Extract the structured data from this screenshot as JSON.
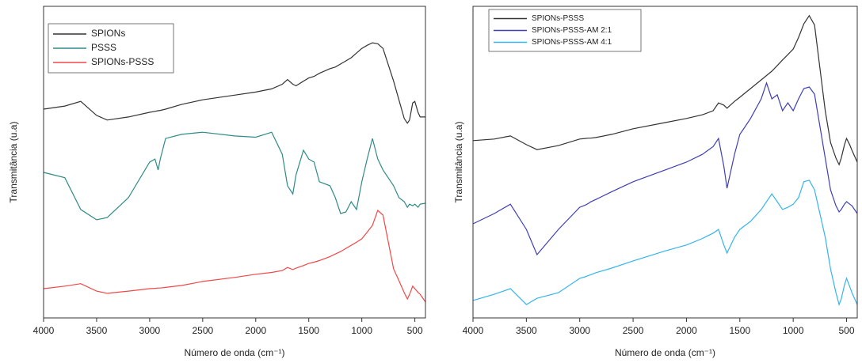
{
  "chart_data": [
    {
      "type": "line",
      "xlabel": "Número de onda (cm⁻¹)",
      "ylabel": "Transmitância (u.a)",
      "xlim": [
        4000,
        400
      ],
      "ylim": [
        0,
        100
      ],
      "xticks": [
        4000,
        3500,
        3000,
        2500,
        2000,
        1500,
        1000,
        500
      ],
      "legend": "upper left",
      "x": [
        4000,
        3800,
        3650,
        3500,
        3400,
        3200,
        3000,
        2950,
        2920,
        2900,
        2850,
        2700,
        2500,
        2200,
        2000,
        1850,
        1750,
        1700,
        1650,
        1620,
        1550,
        1500,
        1450,
        1400,
        1300,
        1250,
        1200,
        1150,
        1100,
        1050,
        1000,
        950,
        900,
        850,
        800,
        700,
        650,
        600,
        570,
        550,
        520,
        500,
        470,
        450,
        400
      ],
      "series": [
        {
          "name": "SPIONs",
          "color": "#333333",
          "values": [
            67,
            68,
            69.5,
            65,
            63.5,
            64.5,
            66,
            66.3,
            66.5,
            66.6,
            67,
            68.5,
            70,
            71.5,
            72.5,
            73.5,
            75,
            76.5,
            75,
            74.5,
            76,
            77,
            77.5,
            78.5,
            80,
            80.5,
            81.5,
            82.5,
            83.5,
            85,
            86.5,
            87.5,
            88.3,
            88,
            86.5,
            76,
            70,
            64,
            62.5,
            63.5,
            69,
            69.5,
            66,
            64.5,
            64.5
          ]
        },
        {
          "name": "PSSS",
          "color": "#2e8b87",
          "values": [
            46.7,
            45,
            34.8,
            31.5,
            32.2,
            38.6,
            50,
            51,
            47.5,
            51,
            57.6,
            58.9,
            59.6,
            58.4,
            58,
            59.6,
            52.5,
            42.4,
            39.8,
            46,
            53.8,
            51,
            50,
            43.7,
            42.4,
            38.6,
            33.5,
            34,
            37.3,
            34.8,
            43.7,
            51,
            57.6,
            51,
            47.5,
            42.4,
            38.6,
            37.3,
            35.5,
            36.5,
            36,
            36.5,
            35.5,
            36.5,
            36.8
          ]
        },
        {
          "name": "SPIONs-PSSS",
          "color": "#f04848",
          "values": [
            9.4,
            10.2,
            11,
            8.6,
            7.9,
            8.6,
            9.4,
            9.5,
            9.6,
            9.6,
            9.8,
            10.4,
            11.7,
            13,
            14,
            14.6,
            15.2,
            16.2,
            15.5,
            16,
            16.8,
            17.5,
            17.9,
            18.4,
            19.7,
            20.5,
            21.3,
            22.3,
            23.3,
            24.3,
            25.4,
            27.5,
            29.7,
            34.5,
            33,
            15.7,
            12,
            8.1,
            6.1,
            7.5,
            10.2,
            9.4,
            8.2,
            7.6,
            5.1
          ]
        }
      ]
    },
    {
      "type": "line",
      "xlabel": "Número de onda (cm⁻¹)",
      "ylabel": "Transmitância (u.a)",
      "xlim": [
        4000,
        400
      ],
      "ylim": [
        0,
        100
      ],
      "xticks": [
        4000,
        3500,
        3000,
        2500,
        2000,
        1500,
        1000,
        500
      ],
      "legend": "upper left",
      "x": [
        4000,
        3800,
        3650,
        3500,
        3400,
        3200,
        3000,
        2950,
        2920,
        2900,
        2850,
        2700,
        2500,
        2200,
        2000,
        1850,
        1750,
        1700,
        1650,
        1620,
        1550,
        1500,
        1450,
        1400,
        1300,
        1250,
        1200,
        1150,
        1100,
        1050,
        1000,
        950,
        900,
        850,
        800,
        700,
        650,
        600,
        570,
        550,
        520,
        500,
        470,
        450,
        400
      ],
      "series": [
        {
          "name": "SPIONs-PSSS",
          "color": "#333333",
          "values": [
            56.9,
            57.4,
            58.4,
            55.6,
            54,
            55.3,
            57.4,
            57.6,
            57.7,
            57.7,
            57.9,
            58.9,
            60.7,
            62.7,
            64,
            65.2,
            66.5,
            69,
            68.3,
            67.3,
            69.5,
            70.8,
            72.2,
            73.6,
            76.4,
            77.8,
            79.2,
            81,
            82.8,
            84.5,
            86.3,
            90,
            94.4,
            97,
            94,
            66.5,
            56.3,
            51.3,
            49.2,
            51.3,
            55.5,
            57.6,
            55.5,
            53.8,
            50
          ]
        },
        {
          "name": "SPIONs-PSSS-AM 2:1",
          "color": "#3f3fb5",
          "values": [
            30.2,
            33.5,
            36.5,
            28.4,
            20.3,
            28.4,
            35.5,
            36.2,
            36.7,
            37.2,
            38,
            40.5,
            43.7,
            47.5,
            50,
            52.5,
            55,
            57.6,
            48.7,
            41.6,
            52.5,
            58.9,
            61.4,
            64,
            70.3,
            75.4,
            70.3,
            71.6,
            66.5,
            69,
            66.5,
            70.3,
            73.6,
            74.1,
            71.8,
            51.3,
            41.1,
            36,
            34,
            34.8,
            36.5,
            37.3,
            36.5,
            36,
            33.5
          ]
        },
        {
          "name": "SPIONs-PSSS-AM 4:1",
          "color": "#35b4ee",
          "values": [
            5.6,
            7.6,
            9.4,
            4.3,
            6.3,
            8.1,
            12.7,
            13.2,
            13.6,
            13.8,
            14.5,
            16,
            18.3,
            21.5,
            23.4,
            25.5,
            27.2,
            28.4,
            23.4,
            20.8,
            25.9,
            28.4,
            29.7,
            31,
            34.8,
            37.3,
            39.8,
            37.3,
            34.8,
            35.5,
            36.5,
            38.6,
            43.7,
            44.2,
            41.1,
            25.9,
            15.7,
            8.1,
            4.3,
            6.1,
            10.5,
            12.7,
            10,
            8.1,
            4.3
          ]
        }
      ]
    }
  ]
}
